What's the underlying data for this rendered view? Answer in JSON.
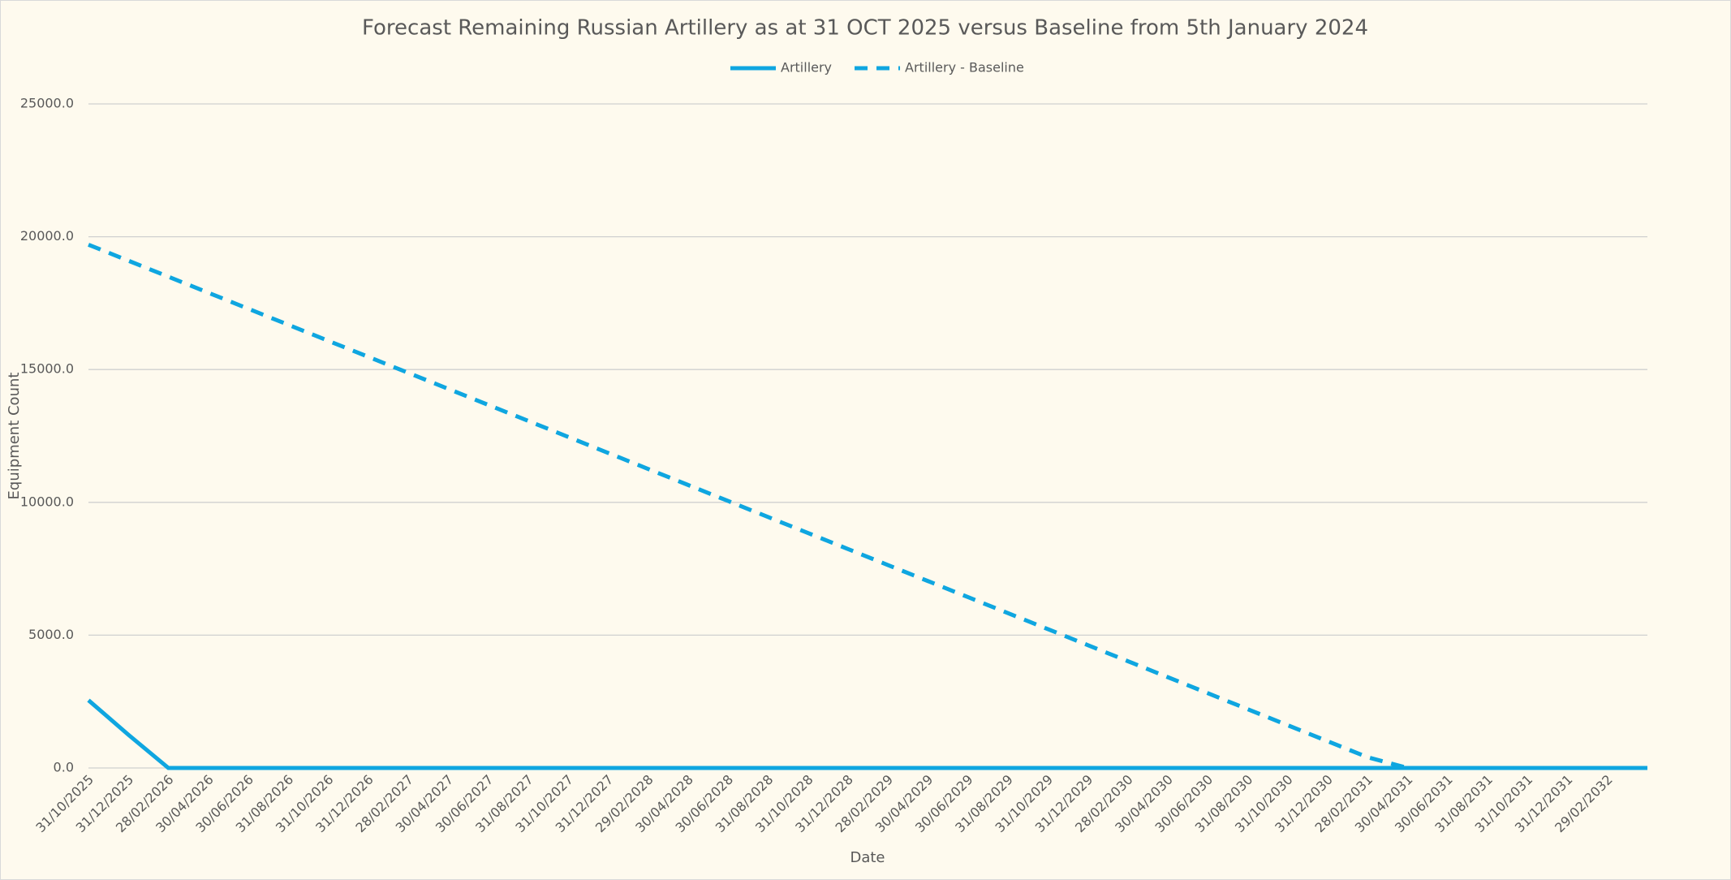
{
  "chart_data": {
    "type": "line",
    "title": "Forecast Remaining Russian Artillery as at 31 OCT 2025 versus Baseline from 5th January 2024",
    "x_label": "Date",
    "y_label": "Equipment Count",
    "categories": [
      "31/10/2025",
      "31/12/2025",
      "28/02/2026",
      "30/04/2026",
      "30/06/2026",
      "31/08/2026",
      "31/10/2026",
      "31/12/2026",
      "28/02/2027",
      "30/04/2027",
      "30/06/2027",
      "31/08/2027",
      "31/10/2027",
      "31/12/2027",
      "29/02/2028",
      "30/04/2028",
      "30/06/2028",
      "31/08/2028",
      "31/10/2028",
      "31/12/2028",
      "28/02/2029",
      "30/04/2029",
      "30/06/2029",
      "31/08/2029",
      "31/10/2029",
      "31/12/2029",
      "28/02/2030",
      "30/04/2030",
      "30/06/2030",
      "31/08/2030",
      "31/10/2030",
      "31/12/2030",
      "28/02/2031",
      "30/04/2031",
      "30/06/2031",
      "31/08/2031",
      "31/10/2031",
      "31/12/2031",
      "29/02/2032",
      null
    ],
    "series": [
      {
        "name": "Artillery",
        "color": "#0fa6e0",
        "style": "solid",
        "values": [
          2550,
          1250,
          0,
          0,
          0,
          0,
          0,
          0,
          0,
          0,
          0,
          0,
          0,
          0,
          0,
          0,
          0,
          0,
          0,
          0,
          0,
          0,
          0,
          0,
          0,
          0,
          0,
          0,
          0,
          0,
          0,
          0,
          0,
          0,
          0,
          0,
          0,
          0,
          0,
          0
        ]
      },
      {
        "name": "Artillery - Baseline",
        "color": "#0fa6e0",
        "style": "dashed",
        "values": [
          19700,
          19097,
          18494,
          17891,
          17288,
          16685,
          16082,
          15479,
          14876,
          14273,
          13670,
          13067,
          12464,
          11861,
          11258,
          10655,
          10052,
          9449,
          8846,
          8243,
          7640,
          7037,
          6434,
          5831,
          5228,
          4625,
          4022,
          3419,
          2816,
          2213,
          1610,
          1007,
          404,
          0,
          0,
          0,
          0,
          0,
          0,
          0
        ]
      }
    ],
    "ylim": [
      0,
      25000
    ],
    "yticks": [
      {
        "value": 0,
        "label": "0.0"
      },
      {
        "value": 5000,
        "label": "5000.0"
      },
      {
        "value": 10000,
        "label": "10000.0"
      },
      {
        "value": 15000,
        "label": "15000.0"
      },
      {
        "value": 20000,
        "label": "20000.0"
      },
      {
        "value": 25000,
        "label": "25000.0"
      }
    ],
    "grid": true,
    "legend": "top"
  }
}
